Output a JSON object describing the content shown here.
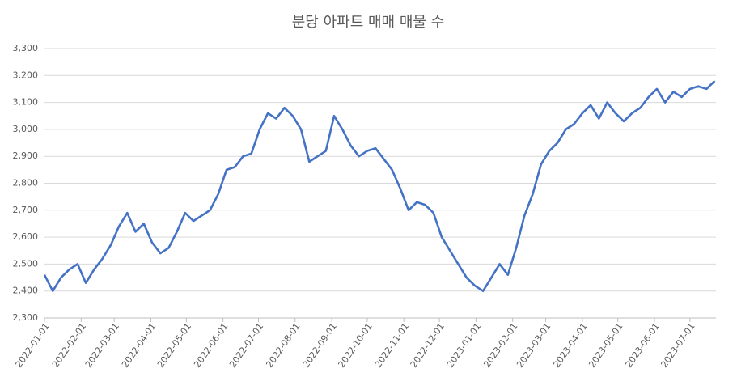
{
  "chart_data": {
    "type": "line",
    "title": "분당 아파트 매매 매물 수",
    "x": [
      "2022-01-01",
      "2022-01-08",
      "2022-01-15",
      "2022-01-22",
      "2022-01-29",
      "2022-02-05",
      "2022-02-12",
      "2022-02-19",
      "2022-02-26",
      "2022-03-05",
      "2022-03-12",
      "2022-03-19",
      "2022-03-26",
      "2022-04-02",
      "2022-04-09",
      "2022-04-16",
      "2022-04-23",
      "2022-04-30",
      "2022-05-07",
      "2022-05-14",
      "2022-05-21",
      "2022-05-28",
      "2022-06-04",
      "2022-06-11",
      "2022-06-18",
      "2022-06-25",
      "2022-07-02",
      "2022-07-09",
      "2022-07-16",
      "2022-07-23",
      "2022-07-30",
      "2022-08-06",
      "2022-08-13",
      "2022-08-20",
      "2022-08-27",
      "2022-09-03",
      "2022-09-10",
      "2022-09-17",
      "2022-09-24",
      "2022-10-01",
      "2022-10-08",
      "2022-10-15",
      "2022-10-22",
      "2022-10-29",
      "2022-11-05",
      "2022-11-12",
      "2022-11-19",
      "2022-11-26",
      "2022-12-03",
      "2022-12-10",
      "2022-12-17",
      "2022-12-24",
      "2022-12-31",
      "2023-01-07",
      "2023-01-14",
      "2023-01-21",
      "2023-01-28",
      "2023-02-04",
      "2023-02-11",
      "2023-02-18",
      "2023-02-25",
      "2023-03-04",
      "2023-03-11",
      "2023-03-18",
      "2023-03-25",
      "2023-04-01",
      "2023-04-08",
      "2023-04-15",
      "2023-04-22",
      "2023-04-29",
      "2023-05-06",
      "2023-05-13",
      "2023-05-20",
      "2023-05-27",
      "2023-06-03",
      "2023-06-10",
      "2023-06-17",
      "2023-06-24",
      "2023-07-01",
      "2023-07-08",
      "2023-07-15",
      "2023-07-22"
    ],
    "series": [
      {
        "name": "매물 수",
        "color": "#4472c4",
        "values": [
          2460,
          2400,
          2450,
          2480,
          2500,
          2430,
          2480,
          2520,
          2570,
          2640,
          2690,
          2620,
          2650,
          2580,
          2540,
          2560,
          2620,
          2690,
          2660,
          2680,
          2700,
          2760,
          2850,
          2860,
          2900,
          2910,
          3000,
          3060,
          3040,
          3080,
          3050,
          3000,
          2880,
          2900,
          2920,
          3050,
          3000,
          2940,
          2900,
          2920,
          2930,
          2890,
          2850,
          2780,
          2700,
          2730,
          2720,
          2690,
          2600,
          2550,
          2500,
          2450,
          2420,
          2400,
          2450,
          2500,
          2460,
          2560,
          2680,
          2760,
          2870,
          2920,
          2950,
          3000,
          3020,
          3060,
          3090,
          3040,
          3100,
          3060,
          3030,
          3060,
          3080,
          3120,
          3150,
          3100,
          3140,
          3120,
          3150,
          3160,
          3150,
          3180
        ]
      }
    ],
    "xlim": [
      "2022-01-01",
      "2023-07-23"
    ],
    "xticks": [
      "2022-01-01",
      "2022-02-01",
      "2022-03-01",
      "2022-04-01",
      "2022-05-01",
      "2022-06-01",
      "2022-07-01",
      "2022-08-01",
      "2022-09-01",
      "2022-10-01",
      "2022-11-01",
      "2022-12-01",
      "2023-01-01",
      "2023-02-01",
      "2023-03-01",
      "2023-04-01",
      "2023-05-01",
      "2023-06-01",
      "2023-07-01"
    ],
    "ylim": [
      2300,
      3300
    ],
    "yticks": [
      {
        "value": 2300,
        "label": "2,300"
      },
      {
        "value": 2400,
        "label": "2,400"
      },
      {
        "value": 2500,
        "label": "2,500"
      },
      {
        "value": 2600,
        "label": "2,600"
      },
      {
        "value": 2700,
        "label": "2,700"
      },
      {
        "value": 2800,
        "label": "2,800"
      },
      {
        "value": 2900,
        "label": "2,900"
      },
      {
        "value": 3000,
        "label": "3,000"
      },
      {
        "value": 3100,
        "label": "3,100"
      },
      {
        "value": 3200,
        "label": "3,200"
      },
      {
        "value": 3300,
        "label": "3,300"
      }
    ],
    "grid": true
  }
}
